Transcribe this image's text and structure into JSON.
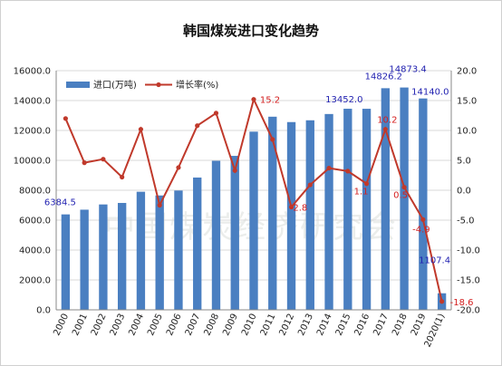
{
  "chart_data": {
    "type": "bar",
    "title": "韩国煤炭进口变化趋势",
    "watermark": "中国煤炭经济研究会",
    "categories": [
      "2000",
      "2001",
      "2002",
      "2003",
      "2004",
      "2005",
      "2006",
      "2007",
      "2008",
      "2009",
      "2010",
      "2011",
      "2012",
      "2013",
      "2014",
      "2015",
      "2016",
      "2017",
      "2018",
      "2019",
      "2020(1)"
    ],
    "series": [
      {
        "name": "进口(万吨)",
        "type": "bar",
        "axis": "left",
        "color": "#4a7fc1",
        "values": [
          6384.5,
          6700,
          7050,
          7150,
          7900,
          7650,
          7980,
          8850,
          9970,
          10300,
          11920,
          12920,
          12560,
          12680,
          13100,
          13452.0,
          13450,
          14826.2,
          14873.4,
          14140.0,
          1107.4
        ]
      },
      {
        "name": "增长率(%)",
        "type": "line",
        "axis": "right",
        "color": "#c0392b",
        "values": [
          12.0,
          4.6,
          5.2,
          2.2,
          10.2,
          -2.5,
          3.8,
          10.8,
          12.9,
          3.3,
          15.2,
          8.5,
          -2.8,
          0.9,
          3.7,
          3.2,
          1.1,
          10.2,
          0.5,
          -4.9,
          -18.6
        ]
      }
    ],
    "bar_labels": [
      {
        "index": 0,
        "text": "6384.5"
      },
      {
        "index": 15,
        "text": "13452.0"
      },
      {
        "index": 17,
        "text": "14826.2"
      },
      {
        "index": 18,
        "text": "14873.4"
      },
      {
        "index": 19,
        "text": "14140.0"
      },
      {
        "index": 20,
        "text": "1107.4"
      }
    ],
    "line_labels": [
      {
        "index": 10,
        "text": "15.2"
      },
      {
        "index": 12,
        "text": "-2.8"
      },
      {
        "index": 16,
        "text": "1.1"
      },
      {
        "index": 17,
        "text": "10.2"
      },
      {
        "index": 18,
        "text": "0.5"
      },
      {
        "index": 19,
        "text": "-4.9"
      },
      {
        "index": 20,
        "text": "-18.6"
      }
    ],
    "y_left": {
      "min": 0,
      "max": 16000,
      "step": 2000,
      "format": "0.0"
    },
    "y_right": {
      "min": -20,
      "max": 20,
      "step": 5,
      "format": "0.0"
    },
    "grid": true,
    "legend": "top-left"
  }
}
